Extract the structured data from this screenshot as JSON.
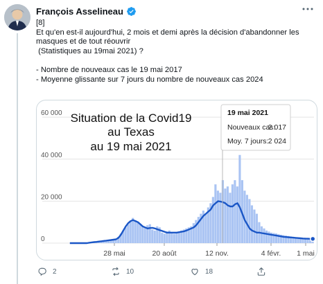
{
  "tweet": {
    "author": "François Asselineau",
    "lines": [
      "[8]",
      "Et qu'en est-il aujourd'hui, 2 mois et demi après la décision d'abandonner les",
      "masques et de tout réouvrir",
      " (Statistiques au 19mai 2021) ?",
      "",
      "- Nombre de nouveaux cas le 19 mai 2017",
      "- Moyenne glissante sur 7 jours du nombre de nouveaux cas 2024"
    ],
    "actions": {
      "replies": "2",
      "retweets": "10",
      "likes": "18"
    }
  },
  "chart_data": {
    "type": "bar",
    "title_lines": [
      "Situation de la Covid19",
      "au Texas",
      "au 19 mai 2021"
    ],
    "yticks": [
      "60 000",
      "40 000",
      "20 000",
      "0"
    ],
    "ytick_values": [
      60000,
      40000,
      20000,
      0
    ],
    "xticks": [
      "28 mai",
      "20 août",
      "12 nov.",
      "4 févr.",
      "1 mai"
    ],
    "ylim": [
      0,
      66000
    ],
    "tooltip": {
      "date": "19 mai 2021",
      "label_cases": "Nouveaux cas:",
      "value_cases": "2 017",
      "label_avg": "Moy. 7 jours:",
      "value_avg": "2 024"
    },
    "colors": {
      "bar": "#aac4f3",
      "line": "#1a56c6",
      "grid": "#e4e4e4",
      "tooltip_border": "#cfcfcf"
    },
    "series": [
      {
        "kind": "bar",
        "values": [
          0,
          0,
          0,
          0,
          0,
          0,
          0,
          0,
          200,
          400,
          600,
          800,
          1000,
          1100,
          1200,
          1400,
          1500,
          1700,
          1800,
          2000,
          3000,
          4500,
          6000,
          7500,
          9000,
          10500,
          12000,
          11000,
          10000,
          9000,
          8000,
          7500,
          8500,
          9000,
          6500,
          6000,
          8000,
          7500,
          5000,
          4500,
          5500,
          6000,
          5000,
          4500,
          5000,
          5500,
          6000,
          6500,
          7000,
          7500,
          8000,
          9500,
          11000,
          12500,
          14000,
          15500,
          14000,
          17000,
          19000,
          22000,
          28000,
          25000,
          24000,
          30000,
          26000,
          27000,
          24000,
          28000,
          30000,
          27000,
          42000,
          30000,
          25000,
          23000,
          21000,
          18000,
          16000,
          14000,
          10000,
          8000,
          7000,
          6000,
          5500,
          5000,
          4800,
          4600,
          4200,
          4000,
          3800,
          3600,
          3400,
          3200,
          3000,
          2800,
          2600,
          2400,
          2300,
          2200,
          2100,
          2000,
          2017
        ]
      },
      {
        "kind": "line",
        "values": [
          0,
          0,
          0,
          0,
          0,
          0,
          0,
          0,
          200,
          350,
          500,
          600,
          750,
          900,
          1050,
          1200,
          1350,
          1500,
          1650,
          1800,
          2500,
          4000,
          6000,
          8000,
          9500,
          10500,
          11000,
          10500,
          10000,
          9000,
          8000,
          7500,
          7000,
          7200,
          7300,
          7000,
          6600,
          6200,
          5800,
          5400,
          5000,
          5000,
          5000,
          5000,
          5000,
          5200,
          5400,
          5600,
          6000,
          6500,
          7000,
          7500,
          8500,
          10000,
          11500,
          13000,
          14000,
          15000,
          16000,
          18000,
          19000,
          20000,
          19800,
          19500,
          19000,
          18000,
          17500,
          17500,
          18500,
          19000,
          17000,
          14000,
          11000,
          9000,
          7000,
          6000,
          5500,
          5000,
          5000,
          4800,
          4600,
          4400,
          4200,
          4000,
          3800,
          3600,
          3400,
          3200,
          3000,
          2900,
          2800,
          2700,
          2600,
          2500,
          2400,
          2300,
          2200,
          2150,
          2100,
          2050,
          2024
        ]
      }
    ]
  }
}
